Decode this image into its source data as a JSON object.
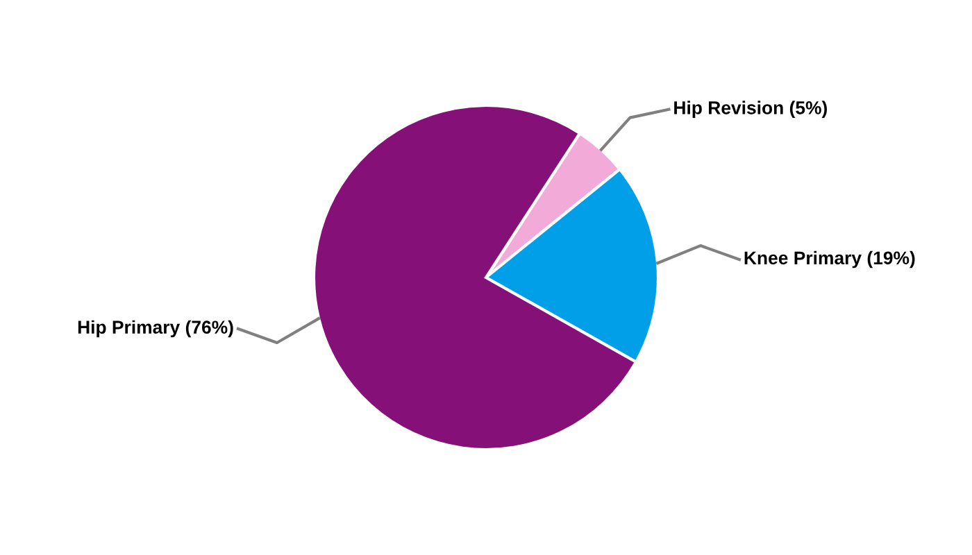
{
  "chart_data": {
    "type": "pie",
    "categories": [
      "Hip Revision (5%)",
      "Knee Primary (19%)",
      "Hip Primary (76%)"
    ],
    "values": [
      5,
      19,
      76
    ],
    "colors": [
      "#f2aad9",
      "#009fe8",
      "#841078"
    ]
  }
}
